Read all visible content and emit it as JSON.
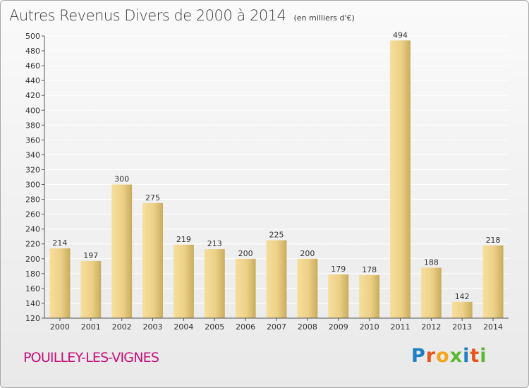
{
  "header": {
    "title": "Autres Revenus Divers de 2000 à 2014",
    "subtitle": "(en milliers d'€)"
  },
  "footer": {
    "town": "POUILLEY-LES-VIGNES",
    "logo_text": "Proxiti",
    "logo_colors": [
      "#1f7fc4",
      "#e8541a",
      "#f2a51a",
      "#5bb832",
      "#1f7fc4",
      "#e8541a",
      "#5bb832"
    ]
  },
  "colors": {
    "bar_light": "#f6df9c",
    "bar_dark": "#c9ac5c",
    "grid": "#ffffff",
    "axis": "#555555",
    "town": "#c8107a"
  },
  "chart_data": {
    "type": "bar",
    "categories": [
      "2000",
      "2001",
      "2002",
      "2003",
      "2004",
      "2005",
      "2006",
      "2007",
      "2008",
      "2009",
      "2010",
      "2011",
      "2012",
      "2013",
      "2014"
    ],
    "values": [
      214,
      197,
      300,
      275,
      219,
      213,
      200,
      225,
      200,
      179,
      178,
      494,
      188,
      142,
      218
    ],
    "ylim": [
      120,
      500
    ],
    "ytick_step": 20,
    "grid": true,
    "xlabel": "",
    "ylabel": ""
  }
}
